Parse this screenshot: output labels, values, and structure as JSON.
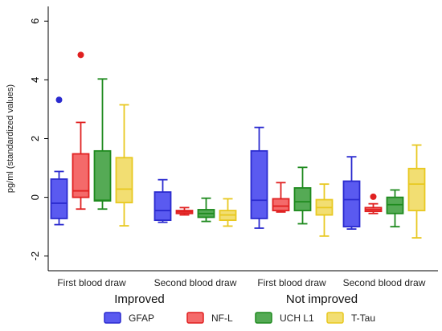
{
  "chart_data": {
    "type": "boxplot",
    "ylabel": "pg/ml (standardized values)",
    "ylim": [
      -2.5,
      6.5
    ],
    "yticks": [
      -2,
      0,
      2,
      4,
      6
    ],
    "grid": false,
    "legend_placement": "bottom",
    "groups": [
      {
        "name": "Improved",
        "draws": [
          "First blood draw",
          "Second blood draw"
        ]
      },
      {
        "name": "Not improved",
        "draws": [
          "First blood draw",
          "Second blood draw"
        ]
      }
    ],
    "series": [
      {
        "name": "GFAP",
        "color": "#5A5AF0",
        "edge": "#2A2ACF"
      },
      {
        "name": "NF-L",
        "color": "#F46A6A",
        "edge": "#E02020"
      },
      {
        "name": "UCH L1",
        "color": "#55AA55",
        "edge": "#1E8A1E"
      },
      {
        "name": "T-Tau",
        "color": "#F2DE72",
        "edge": "#E8C820"
      }
    ],
    "boxes": [
      {
        "group": 0,
        "draw": 0,
        "series": 0,
        "min": -0.93,
        "q1": -0.72,
        "median": -0.2,
        "q3": 0.62,
        "max": 0.88,
        "outliers": [
          3.32
        ]
      },
      {
        "group": 0,
        "draw": 0,
        "series": 1,
        "min": -0.4,
        "q1": 0.0,
        "median": 0.22,
        "q3": 1.48,
        "max": 2.55,
        "outliers": [
          4.85
        ]
      },
      {
        "group": 0,
        "draw": 0,
        "series": 2,
        "min": -0.4,
        "q1": -0.12,
        "median": -0.1,
        "q3": 1.58,
        "max": 4.03,
        "outliers": []
      },
      {
        "group": 0,
        "draw": 0,
        "series": 3,
        "min": -0.97,
        "q1": -0.18,
        "median": 0.28,
        "q3": 1.35,
        "max": 3.15,
        "outliers": []
      },
      {
        "group": 0,
        "draw": 1,
        "series": 0,
        "min": -0.85,
        "q1": -0.78,
        "median": -0.45,
        "q3": 0.18,
        "max": 0.6,
        "outliers": []
      },
      {
        "group": 0,
        "draw": 1,
        "series": 1,
        "min": -0.6,
        "q1": -0.55,
        "median": -0.5,
        "q3": -0.45,
        "max": -0.35,
        "outliers": []
      },
      {
        "group": 0,
        "draw": 1,
        "series": 2,
        "min": -0.82,
        "q1": -0.68,
        "median": -0.55,
        "q3": -0.42,
        "max": -0.03,
        "outliers": []
      },
      {
        "group": 0,
        "draw": 1,
        "series": 3,
        "min": -0.98,
        "q1": -0.78,
        "median": -0.6,
        "q3": -0.45,
        "max": -0.05,
        "outliers": []
      },
      {
        "group": 1,
        "draw": 0,
        "series": 0,
        "min": -1.05,
        "q1": -0.72,
        "median": -0.1,
        "q3": 1.58,
        "max": 2.38,
        "outliers": []
      },
      {
        "group": 1,
        "draw": 0,
        "series": 1,
        "min": -0.5,
        "q1": -0.45,
        "median": -0.3,
        "q3": -0.05,
        "max": 0.5,
        "outliers": []
      },
      {
        "group": 1,
        "draw": 0,
        "series": 2,
        "min": -0.9,
        "q1": -0.45,
        "median": -0.15,
        "q3": 0.32,
        "max": 1.02,
        "outliers": []
      },
      {
        "group": 1,
        "draw": 0,
        "series": 3,
        "min": -1.32,
        "q1": -0.6,
        "median": -0.35,
        "q3": -0.08,
        "max": 0.45,
        "outliers": []
      },
      {
        "group": 1,
        "draw": 1,
        "series": 0,
        "min": -1.08,
        "q1": -1.0,
        "median": -0.08,
        "q3": 0.55,
        "max": 1.38,
        "outliers": []
      },
      {
        "group": 1,
        "draw": 1,
        "series": 1,
        "min": -0.55,
        "q1": -0.48,
        "median": -0.42,
        "q3": -0.35,
        "max": -0.22,
        "outliers": [
          0.02
        ]
      },
      {
        "group": 1,
        "draw": 1,
        "series": 2,
        "min": -1.0,
        "q1": -0.55,
        "median": -0.25,
        "q3": 0.0,
        "max": 0.25,
        "outliers": []
      },
      {
        "group": 1,
        "draw": 1,
        "series": 3,
        "min": -1.38,
        "q1": -0.45,
        "median": 0.45,
        "q3": 0.98,
        "max": 1.78,
        "outliers": []
      }
    ]
  }
}
